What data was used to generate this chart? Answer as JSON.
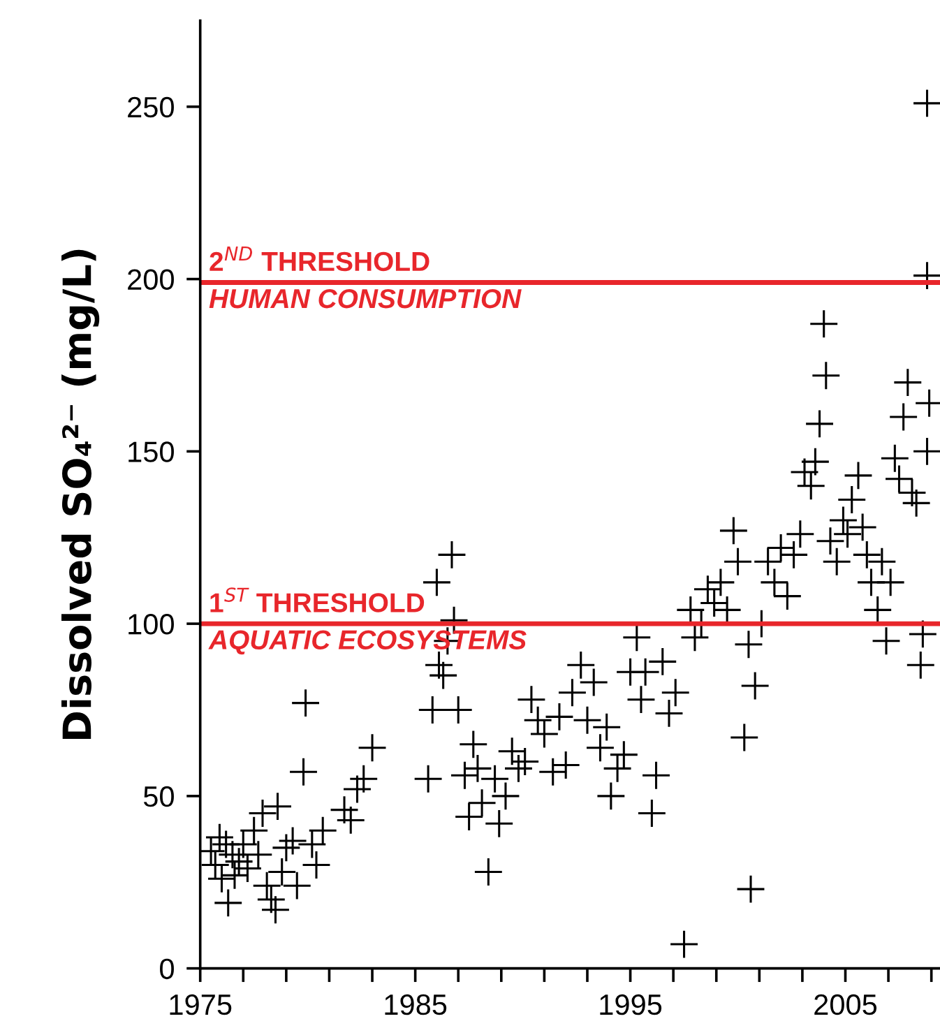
{
  "chart_data": {
    "type": "scatter",
    "ylabel": "Dissolved SO₄²⁻ (mg/L)",
    "marker": "cross",
    "grid": false,
    "xlim": [
      1975,
      2009.4
    ],
    "ylim": [
      0,
      275
    ],
    "xticks": [
      1975,
      {
        "value": 1977,
        "label": null
      },
      {
        "value": 1979,
        "label": null
      },
      {
        "value": 1981,
        "label": null
      },
      {
        "value": 1983,
        "label": null
      },
      1985,
      {
        "value": 1987,
        "label": null
      },
      {
        "value": 1989,
        "label": null
      },
      {
        "value": 1991,
        "label": null
      },
      {
        "value": 1993,
        "label": null
      },
      1995,
      {
        "value": 1997,
        "label": null
      },
      {
        "value": 1999,
        "label": null
      },
      {
        "value": 2001,
        "label": null
      },
      {
        "value": 2003,
        "label": null
      },
      2005,
      {
        "value": 2007,
        "label": null
      },
      {
        "value": 2009,
        "label": null
      }
    ],
    "yticks": [
      0,
      50,
      100,
      150,
      200,
      250
    ],
    "ref_lines": [
      {
        "axis": "y",
        "value": 199,
        "label": "2$^{ND}$ THRESHOLD\nHUMAN CONSUMPTION",
        "color": "#e8262b"
      },
      {
        "axis": "y",
        "value": 100,
        "label": "1$^{ST}$ THRESHOLD\nAQUATIC ECOSYSTEMS",
        "color": "#e8262b"
      }
    ],
    "series": [
      {
        "color": "#000000",
        "x": [
          1975.5,
          1975.7,
          1975.9,
          1976.0,
          1976.2,
          1976.3,
          1976.5,
          1976.6,
          1976.8,
          1977.0,
          1977.2,
          1977.5,
          1977.7,
          1977.9,
          1978.1,
          1978.3,
          1978.5,
          1978.6,
          1978.8,
          1979.0,
          1979.3,
          1979.5,
          1979.8,
          1979.9,
          1980.2,
          1980.4,
          1980.7,
          1981.7,
          1982.0,
          1982.3,
          1982.6,
          1983.0,
          1985.6,
          1985.8,
          1986.0,
          1986.1,
          1986.3,
          1986.5,
          1986.7,
          1986.8,
          1987.0,
          1987.3,
          1987.5,
          1987.7,
          1987.9,
          1988.1,
          1988.4,
          1988.7,
          1988.9,
          1989.2,
          1989.5,
          1989.8,
          1990.1,
          1990.4,
          1990.7,
          1991.0,
          1991.4,
          1991.7,
          1992.0,
          1992.3,
          1992.7,
          1993.0,
          1993.3,
          1993.6,
          1993.9,
          1994.1,
          1994.4,
          1994.7,
          1995.0,
          1995.3,
          1995.5,
          1995.7,
          1996.0,
          1996.2,
          1996.5,
          1996.8,
          1997.1,
          1997.5,
          1997.8,
          1998.0,
          1998.3,
          1998.6,
          1998.9,
          1999.2,
          1999.5,
          1999.8,
          2000.0,
          2000.3,
          2000.5,
          2000.6,
          2000.8,
          2001.1,
          2001.4,
          2001.7,
          2002.0,
          2002.3,
          2002.6,
          2002.9,
          2003.1,
          2003.4,
          2003.6,
          2003.8,
          2004.0,
          2004.1,
          2004.3,
          2004.6,
          2004.9,
          2005.1,
          2005.3,
          2005.6,
          2005.8,
          2006.0,
          2006.2,
          2006.5,
          2006.7,
          2006.9,
          2007.1,
          2007.3,
          2007.5,
          2007.7,
          2007.9,
          2008.1,
          2008.3,
          2008.5,
          2008.6,
          2008.8,
          2008.8,
          2008.8,
          2008.9
        ],
        "values": [
          34,
          30,
          38,
          26,
          36,
          19,
          33,
          27,
          31,
          36,
          29,
          40,
          33,
          45,
          24,
          20,
          17,
          47,
          28,
          35,
          37,
          24,
          57,
          77,
          36,
          30,
          40,
          46,
          43,
          52,
          55,
          64,
          55,
          75,
          112,
          88,
          85,
          95,
          120,
          101,
          75,
          56,
          44,
          65,
          58,
          48,
          28,
          55,
          42,
          50,
          63,
          58,
          60,
          78,
          72,
          68,
          57,
          73,
          59,
          80,
          88,
          72,
          83,
          64,
          70,
          50,
          58,
          62,
          86,
          96,
          78,
          86,
          45,
          56,
          89,
          74,
          80,
          7,
          104,
          96,
          100,
          110,
          106,
          112,
          104,
          127,
          118,
          67,
          94,
          23,
          82,
          100,
          118,
          112,
          122,
          108,
          120,
          126,
          144,
          140,
          147,
          158,
          187,
          172,
          124,
          118,
          130,
          126,
          136,
          143,
          128,
          120,
          112,
          104,
          118,
          95,
          112,
          148,
          142,
          160,
          170,
          138,
          135,
          88,
          97,
          150,
          201,
          251,
          164
        ]
      }
    ]
  }
}
